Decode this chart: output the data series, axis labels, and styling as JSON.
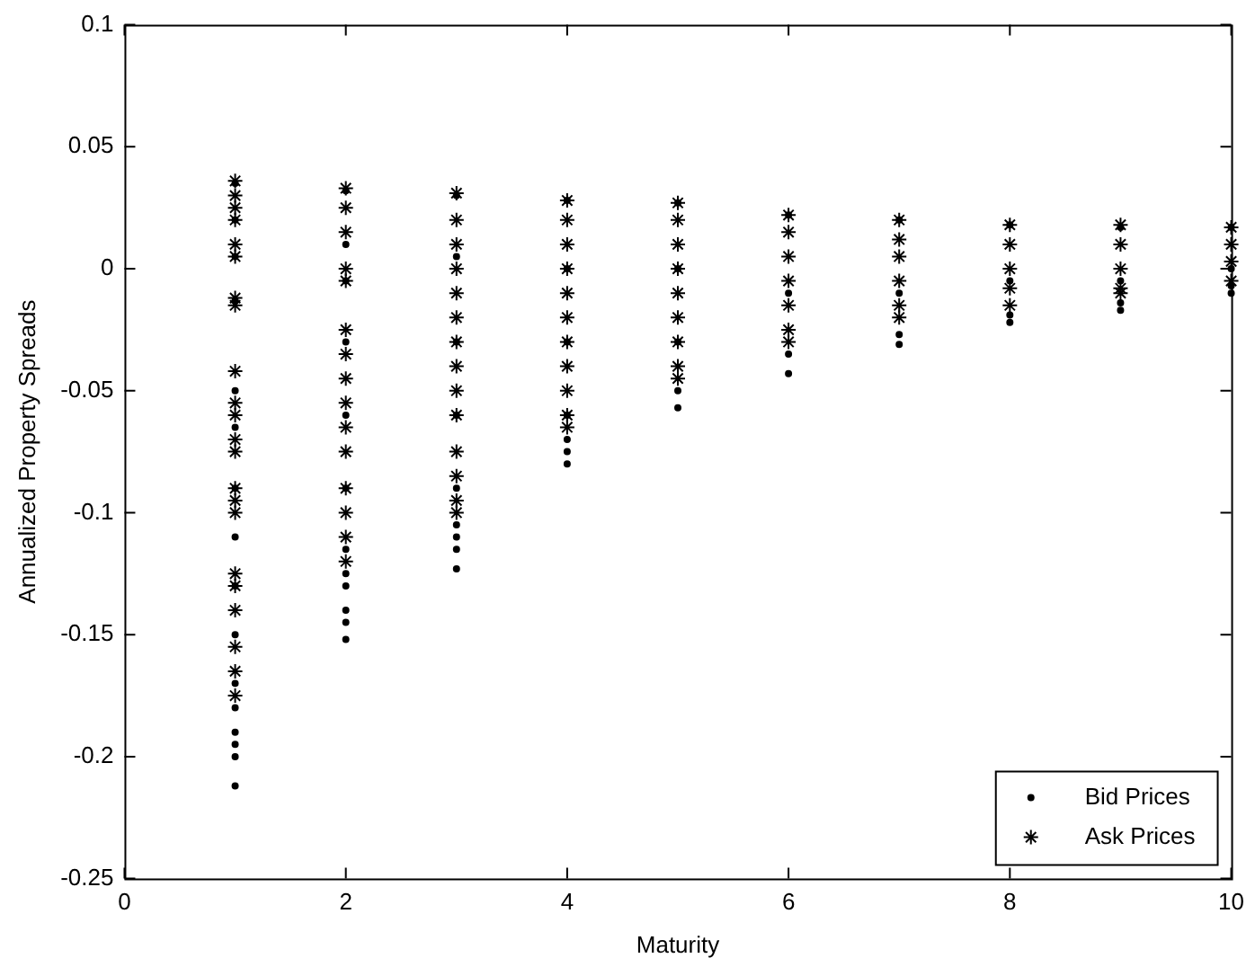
{
  "chart_data": {
    "type": "scatter",
    "xlabel": "Maturity",
    "ylabel": "Annualized Property Spreads",
    "xlim": [
      0,
      10
    ],
    "xticks": [
      0,
      2,
      4,
      6,
      8,
      10
    ],
    "ylim": [
      -0.25,
      0.1
    ],
    "yticks": [
      -0.25,
      -0.2,
      -0.15,
      -0.1,
      -0.05,
      0,
      0.05,
      0.1
    ],
    "grid": false,
    "legend": "bottom right",
    "series": [
      {
        "name": "Bid Prices",
        "color": "#000000",
        "marker": "circle",
        "x": [
          1,
          1,
          1,
          1,
          1,
          1,
          1,
          1,
          1,
          1,
          1,
          1,
          1,
          1,
          1,
          1,
          2,
          2,
          2,
          2,
          2,
          2,
          2,
          2,
          2,
          2,
          2,
          2,
          3,
          3,
          3,
          3,
          3,
          3,
          3,
          3,
          3,
          4,
          4,
          4,
          4,
          4,
          4,
          4,
          5,
          5,
          5,
          5,
          5,
          6,
          6,
          6,
          6,
          7,
          7,
          7,
          7,
          8,
          8,
          8,
          8,
          9,
          9,
          9,
          9,
          10,
          10,
          10,
          10
        ],
        "values": [
          0.035,
          0.02,
          0.005,
          -0.013,
          -0.05,
          -0.065,
          -0.09,
          -0.11,
          -0.13,
          -0.15,
          -0.17,
          -0.18,
          -0.19,
          -0.195,
          -0.2,
          -0.212,
          0.032,
          0.01,
          -0.005,
          -0.03,
          -0.06,
          -0.09,
          -0.115,
          -0.125,
          -0.13,
          -0.14,
          -0.145,
          -0.152,
          0.03,
          0.005,
          -0.03,
          -0.06,
          -0.09,
          -0.105,
          -0.11,
          -0.115,
          -0.123,
          0.028,
          0.0,
          -0.03,
          -0.06,
          -0.07,
          -0.075,
          -0.08,
          0.027,
          0.0,
          -0.03,
          -0.05,
          -0.057,
          0.022,
          -0.01,
          -0.035,
          -0.043,
          0.02,
          -0.01,
          -0.027,
          -0.031,
          0.018,
          -0.005,
          -0.019,
          -0.022,
          0.017,
          -0.005,
          -0.014,
          -0.017,
          0.017,
          0.0,
          -0.007,
          -0.01
        ]
      },
      {
        "name": "Ask Prices",
        "color": "#000000",
        "marker": "cross",
        "x": [
          1,
          1,
          1,
          1,
          1,
          1,
          1,
          1,
          1,
          1,
          1,
          1,
          1,
          1,
          1,
          1,
          1,
          1,
          1,
          1,
          1,
          1,
          2,
          2,
          2,
          2,
          2,
          2,
          2,
          2,
          2,
          2,
          2,
          2,
          2,
          2,
          2,
          3,
          3,
          3,
          3,
          3,
          3,
          3,
          3,
          3,
          3,
          3,
          3,
          3,
          3,
          4,
          4,
          4,
          4,
          4,
          4,
          4,
          4,
          4,
          4,
          4,
          5,
          5,
          5,
          5,
          5,
          5,
          5,
          5,
          5,
          6,
          6,
          6,
          6,
          6,
          6,
          6,
          7,
          7,
          7,
          7,
          7,
          7,
          8,
          8,
          8,
          8,
          8,
          9,
          9,
          9,
          9,
          9,
          10,
          10,
          10,
          10
        ],
        "values": [
          0.036,
          0.03,
          0.025,
          0.02,
          0.01,
          0.005,
          -0.012,
          -0.015,
          -0.042,
          -0.055,
          -0.06,
          -0.07,
          -0.075,
          -0.09,
          -0.095,
          -0.1,
          -0.125,
          -0.13,
          -0.14,
          -0.155,
          -0.165,
          -0.175,
          0.033,
          0.025,
          0.015,
          0.0,
          -0.005,
          -0.025,
          -0.035,
          -0.045,
          -0.055,
          -0.065,
          -0.075,
          -0.09,
          -0.1,
          -0.11,
          -0.12,
          0.031,
          0.02,
          0.01,
          0.0,
          -0.01,
          -0.02,
          -0.03,
          -0.04,
          -0.05,
          -0.06,
          -0.075,
          -0.085,
          -0.095,
          -0.1,
          0.028,
          0.02,
          0.01,
          0.0,
          -0.01,
          -0.02,
          -0.03,
          -0.04,
          -0.05,
          -0.06,
          -0.065,
          0.027,
          0.02,
          0.01,
          0.0,
          -0.01,
          -0.02,
          -0.03,
          -0.04,
          -0.045,
          0.022,
          0.015,
          0.005,
          -0.005,
          -0.015,
          -0.025,
          -0.03,
          0.02,
          0.012,
          0.005,
          -0.005,
          -0.015,
          -0.02,
          0.018,
          0.01,
          0.0,
          -0.008,
          -0.015,
          0.018,
          0.01,
          0.0,
          -0.008,
          -0.01,
          0.017,
          0.01,
          0.003,
          -0.005
        ]
      }
    ]
  }
}
